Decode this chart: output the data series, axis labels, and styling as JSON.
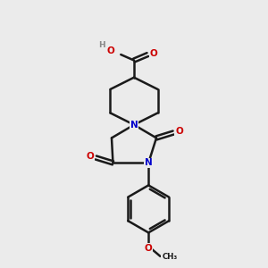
{
  "bg_color": "#ebebeb",
  "bond_color": "#1a1a1a",
  "atom_N": "#0000cc",
  "atom_O": "#cc0000",
  "atom_H": "#888888",
  "bond_width": 1.8,
  "figsize": [
    3.0,
    3.0
  ],
  "dpi": 100,
  "xlim": [
    0,
    10
  ],
  "ylim": [
    0,
    10
  ]
}
